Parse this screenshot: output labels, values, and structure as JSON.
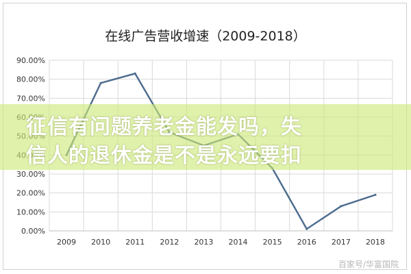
{
  "chart_data": {
    "type": "line",
    "title": "在线广告营收增速（2009-2018）",
    "categories": [
      "2009",
      "2010",
      "2011",
      "2012",
      "2013",
      "2014",
      "2015",
      "2016",
      "2017",
      "2018"
    ],
    "series": [
      {
        "values": [
          40,
          78,
          83,
          52,
          45,
          51,
          33,
          1,
          13,
          19
        ]
      }
    ],
    "ylim": [
      0,
      90
    ],
    "yticks": [
      "0.00%",
      "10.00%",
      "20.00%",
      "30.00%",
      "40.00%",
      "50.00%",
      "60.00%",
      "70.00%",
      "80.00%",
      "90.00%"
    ],
    "grid": true,
    "line_color": "#4f6e8f"
  },
  "overlay": {
    "line1": "征信有问题养老金能发吗，失",
    "line2": "信人的退休金是不是永远要扣"
  },
  "watermark": "百家号/华富国院"
}
